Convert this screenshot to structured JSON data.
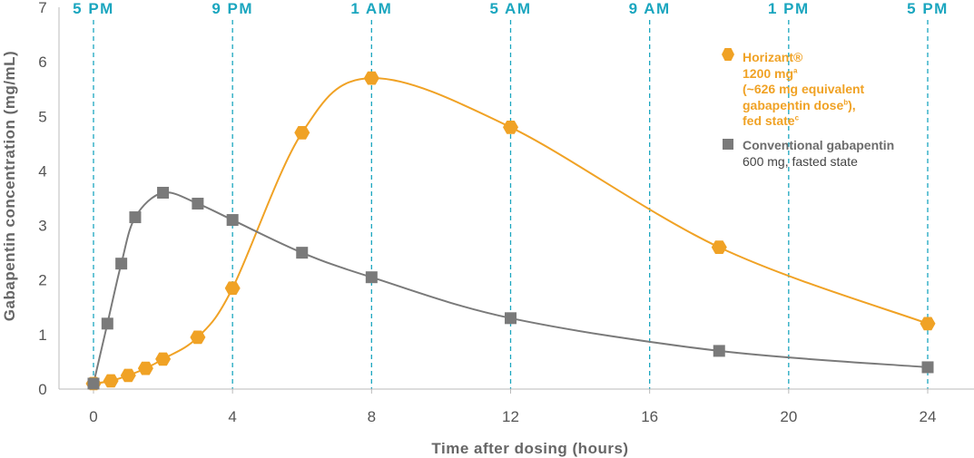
{
  "chart_data": {
    "type": "line",
    "xlabel": "Time after dosing (hours)",
    "ylabel": "Gabapentin concentration (mg/mL)",
    "xlim": [
      -1,
      25.5
    ],
    "ylim": [
      0,
      7
    ],
    "x_ticks": [
      0,
      4,
      8,
      12,
      16,
      20,
      24
    ],
    "y_ticks": [
      0,
      1,
      2,
      3,
      4,
      5,
      6,
      7
    ],
    "clock_ticks": [
      {
        "x": 0,
        "label": "5 PM"
      },
      {
        "x": 4,
        "label": "9 PM"
      },
      {
        "x": 8,
        "label": "1 AM"
      },
      {
        "x": 12,
        "label": "5 AM"
      },
      {
        "x": 16,
        "label": "9 AM"
      },
      {
        "x": 20,
        "label": "1 PM"
      },
      {
        "x": 24,
        "label": "5 PM"
      }
    ],
    "series": [
      {
        "name": "Horizant®",
        "marker": "hexagon",
        "color": "#f0a225",
        "x": [
          0,
          0.5,
          1,
          1.5,
          2,
          3,
          4,
          6,
          8,
          12,
          18,
          24
        ],
        "y": [
          0.1,
          0.15,
          0.25,
          0.38,
          0.55,
          0.95,
          1.85,
          4.7,
          5.7,
          4.8,
          2.6,
          1.2
        ]
      },
      {
        "name": "Conventional gabapentin",
        "marker": "square",
        "color": "#7a7a7a",
        "x": [
          0,
          0.4,
          0.8,
          1.2,
          2,
          3,
          4,
          6,
          8,
          12,
          18,
          24
        ],
        "y": [
          0.1,
          1.2,
          2.3,
          3.15,
          3.6,
          3.4,
          3.1,
          2.5,
          2.05,
          1.3,
          0.7,
          0.4
        ]
      }
    ],
    "legend": [
      {
        "title": "Horizant®",
        "lines": [
          "1200 mg",
          "(~626 mg equivalent",
          "gabapentin dose",
          "),",
          "fed state"
        ],
        "sup": [
          "a",
          "b",
          "c"
        ]
      },
      {
        "title": "Conventional gabapentin",
        "lines": [
          "600 mg, fasted state"
        ]
      }
    ],
    "legend_position": "top-right",
    "grid": false,
    "colors": {
      "time_lines": "#1ba6bf",
      "axis": "#bbbbbb"
    }
  }
}
